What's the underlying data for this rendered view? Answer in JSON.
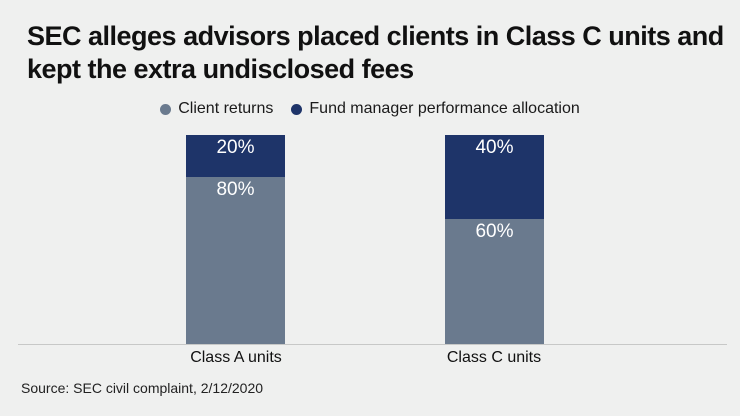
{
  "header": {
    "title": "SEC alleges advisors placed clients in Class C units and kept the extra undisclosed fees"
  },
  "footer": {
    "source": "Source: SEC civil complaint, 2/12/2020"
  },
  "colors": {
    "background": "#eff0ef",
    "axis_line": "#c7c8c7",
    "title_text": "#111111",
    "bar_label_text": "#ffffff"
  },
  "chart_data": {
    "type": "bar",
    "subtype": "stacked-percent",
    "title": "SEC alleges advisors placed clients in Class C units and kept the extra undisclosed fees",
    "categories": [
      "Class A units",
      "Class C units"
    ],
    "series": [
      {
        "name": "Client returns",
        "values": [
          80,
          60
        ],
        "color": "#6a7a8e"
      },
      {
        "name": "Fund manager performance allocation",
        "values": [
          20,
          40
        ],
        "color": "#1e3469"
      }
    ],
    "value_format": "percent",
    "data_labels": [
      [
        "80%",
        "60%"
      ],
      [
        "20%",
        "40%"
      ]
    ],
    "ylim": [
      0,
      100
    ],
    "grid": false,
    "legend_position": "top-center",
    "xlabel": "",
    "ylabel": ""
  }
}
